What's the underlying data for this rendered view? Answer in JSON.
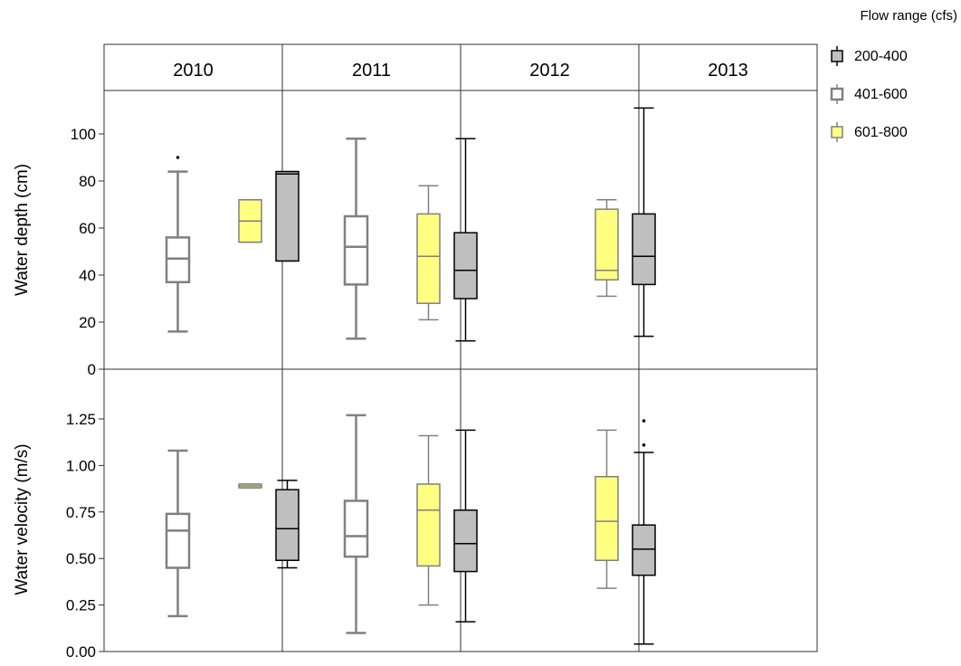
{
  "chart_data": {
    "type": "box",
    "legend": {
      "title": "Flow range (cfs)",
      "placement": "top-right",
      "items": [
        {
          "label": "200-400",
          "fill": "#bfbfbf",
          "stroke": "#000000"
        },
        {
          "label": "401-600",
          "fill": "#ffffff",
          "stroke": "#808080"
        },
        {
          "label": "601-800",
          "fill": "#ffff80",
          "stroke": "#808080"
        }
      ]
    },
    "facets": [
      "2010",
      "2011",
      "2012",
      "2013"
    ],
    "panels": [
      {
        "ylabel": "Water depth (cm)",
        "ylim": [
          0,
          120
        ],
        "yticks": [
          0,
          20,
          40,
          60,
          80,
          100
        ],
        "ytick_labels": [
          "0",
          "20",
          "40",
          "60",
          "80",
          "100"
        ],
        "boxes": [
          {
            "year": "2010",
            "flow": "401-600",
            "min": 16,
            "q1": 37,
            "median": 47,
            "q3": 56,
            "max": 84,
            "outliers": [
              90
            ]
          },
          {
            "year": "2010",
            "flow": "601-800",
            "min": 54,
            "q1": 54,
            "median": 63,
            "q3": 72,
            "max": 72,
            "outliers": []
          },
          {
            "year": "2011",
            "flow": "200-400",
            "min": 46,
            "q1": 46,
            "median": 83,
            "q3": 84,
            "max": 84,
            "outliers": []
          },
          {
            "year": "2011",
            "flow": "401-600",
            "min": 13,
            "q1": 36,
            "median": 52,
            "q3": 65,
            "max": 98,
            "outliers": []
          },
          {
            "year": "2011",
            "flow": "601-800",
            "min": 21,
            "q1": 28,
            "median": 48,
            "q3": 66,
            "max": 78,
            "outliers": []
          },
          {
            "year": "2012",
            "flow": "200-400",
            "min": 12,
            "q1": 30,
            "median": 42,
            "q3": 58,
            "max": 98,
            "outliers": []
          },
          {
            "year": "2012",
            "flow": "601-800",
            "min": 31,
            "q1": 38,
            "median": 42,
            "q3": 68,
            "max": 72,
            "outliers": []
          },
          {
            "year": "2013",
            "flow": "200-400",
            "min": 14,
            "q1": 36,
            "median": 48,
            "q3": 66,
            "max": 111,
            "outliers": []
          }
        ]
      },
      {
        "ylabel": "Water velocity (m/s)",
        "ylim": [
          0,
          1.4
        ],
        "yticks": [
          0,
          0.25,
          0.5,
          0.75,
          1.0,
          1.25
        ],
        "ytick_labels": [
          "0.00",
          "0.25",
          "0.50",
          "0.75",
          "1.00",
          "1.25"
        ],
        "boxes": [
          {
            "year": "2010",
            "flow": "401-600",
            "min": 0.19,
            "q1": 0.45,
            "median": 0.65,
            "q3": 0.74,
            "max": 1.08,
            "outliers": []
          },
          {
            "year": "2010",
            "flow": "601-800",
            "min": 0.88,
            "q1": 0.88,
            "median": 0.89,
            "q3": 0.9,
            "max": 0.9,
            "outliers": []
          },
          {
            "year": "2011",
            "flow": "200-400",
            "min": 0.45,
            "q1": 0.49,
            "median": 0.66,
            "q3": 0.87,
            "max": 0.92,
            "outliers": []
          },
          {
            "year": "2011",
            "flow": "401-600",
            "min": 0.1,
            "q1": 0.51,
            "median": 0.62,
            "q3": 0.81,
            "max": 1.27,
            "outliers": []
          },
          {
            "year": "2011",
            "flow": "601-800",
            "min": 0.25,
            "q1": 0.46,
            "median": 0.76,
            "q3": 0.9,
            "max": 1.16,
            "outliers": []
          },
          {
            "year": "2012",
            "flow": "200-400",
            "min": 0.16,
            "q1": 0.43,
            "median": 0.58,
            "q3": 0.76,
            "max": 1.19,
            "outliers": []
          },
          {
            "year": "2012",
            "flow": "601-800",
            "min": 0.34,
            "q1": 0.49,
            "median": 0.7,
            "q3": 0.94,
            "max": 1.19,
            "outliers": []
          },
          {
            "year": "2013",
            "flow": "200-400",
            "min": 0.04,
            "q1": 0.41,
            "median": 0.55,
            "q3": 0.68,
            "max": 1.07,
            "outliers": [
              1.11,
              1.24
            ]
          }
        ]
      }
    ]
  }
}
